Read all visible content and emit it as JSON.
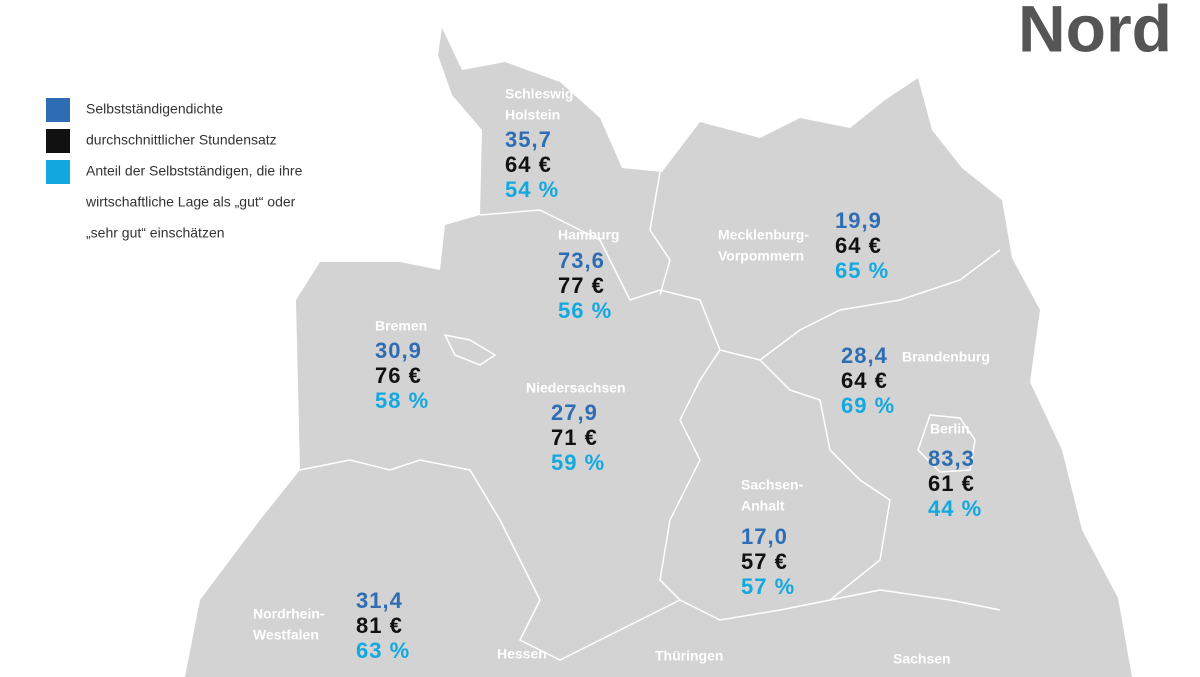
{
  "title": "Nord",
  "legend": [
    {
      "label_lines": [
        "Selbstständigendichte"
      ],
      "color": "#2e6db4"
    },
    {
      "label_lines": [
        "durchschnittlicher Stundensatz"
      ],
      "color": "#111111"
    },
    {
      "label_lines": [
        "Anteil der Selbstständigen, die ihre",
        "wirtschaftliche Lage als „gut“ oder",
        "„sehr gut“ einschätzen"
      ],
      "color": "#12a8e0"
    }
  ],
  "regions": [
    {
      "name_lines": [
        "Schleswig-",
        "Holstein"
      ],
      "density": "35,7",
      "rate": "64 €",
      "share": "54 %"
    },
    {
      "name_lines": [
        "Hamburg"
      ],
      "density": "73,6",
      "rate": "77 €",
      "share": "56 %"
    },
    {
      "name_lines": [
        "Mecklenburg-",
        "Vorpommern"
      ],
      "density": "19,9",
      "rate": "64 €",
      "share": "65 %"
    },
    {
      "name_lines": [
        "Bremen"
      ],
      "density": "30,9",
      "rate": "76 €",
      "share": "58 %"
    },
    {
      "name_lines": [
        "Niedersachsen"
      ],
      "density": "27,9",
      "rate": "71 €",
      "share": "59 %"
    },
    {
      "name_lines": [
        "Brandenburg"
      ],
      "density": "28,4",
      "rate": "64 €",
      "share": "69 %"
    },
    {
      "name_lines": [
        "Berlin"
      ],
      "density": "83,3",
      "rate": "61 €",
      "share": "44 %"
    },
    {
      "name_lines": [
        "Sachsen-",
        "Anhalt"
      ],
      "density": "17,0",
      "rate": "57 €",
      "share": "57 %"
    },
    {
      "name_lines": [
        "Nordrhein-",
        "Westfalen"
      ],
      "density": "31,4",
      "rate": "81 €",
      "share": "63 %"
    },
    {
      "name_lines": [
        "Hessen"
      ]
    },
    {
      "name_lines": [
        "Thüringen"
      ]
    },
    {
      "name_lines": [
        "Sachsen"
      ]
    }
  ]
}
